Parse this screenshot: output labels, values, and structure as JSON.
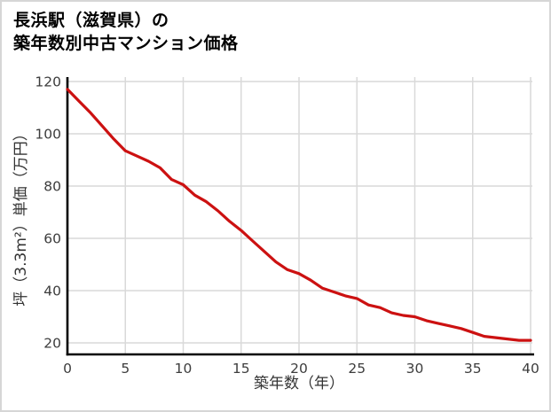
{
  "header": {
    "title_line1": "長浜駅（滋賀県）の",
    "title_line2": "築年数別中古マンション価格"
  },
  "chart_data": {
    "type": "line",
    "title": "長浜駅（滋賀県）の築年数別中古マンション価格",
    "xlabel": "築年数（年）",
    "ylabel": "坪（3.3m²）単価（万円）",
    "x": [
      0,
      1,
      2,
      3,
      4,
      5,
      6,
      7,
      8,
      9,
      10,
      11,
      12,
      13,
      14,
      15,
      16,
      17,
      18,
      19,
      20,
      21,
      22,
      23,
      24,
      25,
      26,
      27,
      28,
      29,
      30,
      31,
      32,
      33,
      34,
      35,
      36,
      37,
      38,
      39,
      40
    ],
    "series": [
      {
        "name": "坪単価（万円）",
        "color": "#cc1111",
        "values": [
          117,
          112.5,
          108,
          103,
          98,
          93.5,
          91.5,
          89.5,
          87,
          82.5,
          80.5,
          76.5,
          74,
          70.5,
          66.5,
          63,
          59,
          55,
          51,
          48,
          46.5,
          44,
          41,
          39.5,
          38,
          37,
          34.5,
          33.5,
          31.5,
          30.5,
          30,
          28.5,
          27.5,
          26.5,
          25.5,
          24,
          22.5,
          22,
          21.5,
          21,
          21
        ]
      }
    ],
    "xlim": [
      0,
      40
    ],
    "ylim": [
      20,
      120
    ],
    "xticks": [
      0,
      5,
      10,
      15,
      20,
      25,
      30,
      35,
      40
    ],
    "yticks": [
      20,
      40,
      60,
      80,
      100,
      120
    ],
    "grid": "on",
    "legend": "none"
  },
  "colors": {
    "line": "#cc1111",
    "grid": "#d9d9d9",
    "axis": "#000000",
    "text": "#3d3d3d"
  }
}
